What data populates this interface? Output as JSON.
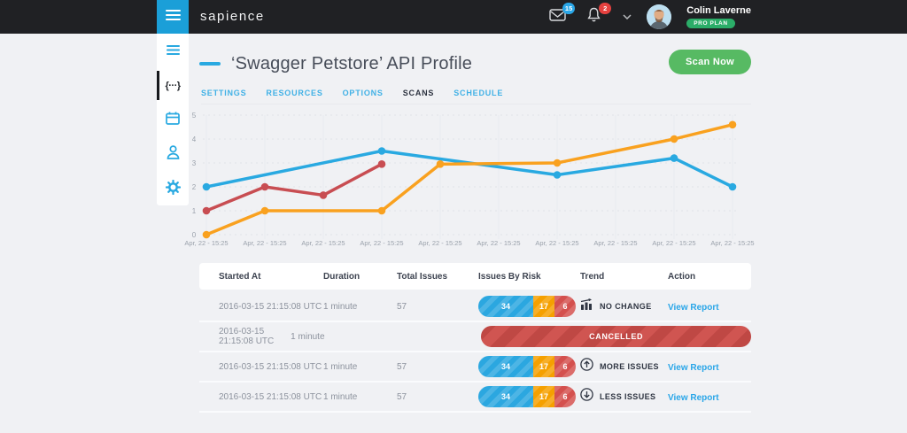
{
  "colors": {
    "accent_blue": "#29a9e1",
    "chart_red": "#c84d52",
    "chart_orange": "#f9a11f",
    "green_button": "#57ba63",
    "link_blue": "#2aa6e8",
    "risk_blue": "#2ba7e0",
    "risk_orange": "#f5a000",
    "risk_red": "#d4504e",
    "cancel_red": "#d05551"
  },
  "topbar": {
    "logo": "sapience",
    "mail_badge": "15",
    "bell_badge": "2",
    "user_name": "Colin Laverne",
    "user_plan": "PRO PLAN"
  },
  "sidebar": {
    "items": [
      {
        "id": "menu",
        "icon": "hamburger-icon",
        "active": false
      },
      {
        "id": "api-profiles",
        "icon": "code-braces-icon",
        "active": true,
        "glyph": "{···}"
      },
      {
        "id": "schedule",
        "icon": "calendar-icon",
        "active": false
      },
      {
        "id": "users",
        "icon": "user-icon",
        "active": false
      },
      {
        "id": "settings",
        "icon": "gear-icon",
        "active": false
      }
    ]
  },
  "page": {
    "title": "‘Swagger Petstore’ API Profile",
    "scan_button": "Scan Now",
    "tabs": [
      {
        "label": "SETTINGS",
        "active": false
      },
      {
        "label": "RESOURCES",
        "active": false
      },
      {
        "label": "OPTIONS",
        "active": false
      },
      {
        "label": "SCANS",
        "active": true
      },
      {
        "label": "SCHEDULE",
        "active": false
      }
    ]
  },
  "chart_data": {
    "type": "line",
    "title": "",
    "xlabel": "",
    "ylabel": "",
    "ylim": [
      0,
      5
    ],
    "yticks": [
      0,
      1,
      2,
      3,
      4,
      5
    ],
    "grid": true,
    "legend": "none",
    "x_labels": [
      "Apr, 22 - 15:25",
      "Apr, 22 - 15:25",
      "Apr, 22 - 15:25",
      "Apr, 22 - 15:25",
      "Apr, 22 - 15:25",
      "Apr, 22 - 15:25",
      "Apr, 22 - 15:25",
      "Apr, 22 - 15:25",
      "Apr, 22 - 15:25",
      "Apr, 22 - 15:25"
    ],
    "series": [
      {
        "name": "blue",
        "color": "#29a9e1",
        "points": [
          {
            "x": 0,
            "y": 2.0
          },
          {
            "x": 3,
            "y": 3.5
          },
          {
            "x": 6,
            "y": 2.5
          },
          {
            "x": 8,
            "y": 3.2
          },
          {
            "x": 9,
            "y": 2.0
          }
        ]
      },
      {
        "name": "red",
        "color": "#c84d52",
        "points": [
          {
            "x": 0,
            "y": 1.0
          },
          {
            "x": 1,
            "y": 2.0
          },
          {
            "x": 2,
            "y": 1.65
          },
          {
            "x": 3,
            "y": 2.95
          }
        ]
      },
      {
        "name": "orange",
        "color": "#f9a11f",
        "points": [
          {
            "x": 0,
            "y": 0.0
          },
          {
            "x": 1,
            "y": 1.0
          },
          {
            "x": 3,
            "y": 1.0
          },
          {
            "x": 4,
            "y": 2.95
          },
          {
            "x": 6,
            "y": 3.0
          },
          {
            "x": 8,
            "y": 4.0
          },
          {
            "x": 9,
            "y": 4.6
          }
        ]
      }
    ]
  },
  "table": {
    "columns": [
      "Started At",
      "Duration",
      "Total Issues",
      "Issues By Risk",
      "Trend",
      "Action"
    ],
    "rows": [
      {
        "started_at": "2016-03-15 21:15:08 UTC",
        "duration": "1 minute",
        "total_issues": "57",
        "risk": [
          "34",
          "17",
          "6"
        ],
        "trend": "NO CHANGE",
        "action": "View Report"
      },
      {
        "started_at": "2016-03-15 21:15:08 UTC",
        "duration": "1 minute",
        "status": "CANCELLED"
      },
      {
        "started_at": "2016-03-15 21:15:08 UTC",
        "duration": "1 minute",
        "total_issues": "57",
        "risk": [
          "34",
          "17",
          "6"
        ],
        "trend": "MORE ISSUES",
        "action": "View Report"
      },
      {
        "started_at": "2016-03-15 21:15:08 UTC",
        "duration": "1 minute",
        "total_issues": "57",
        "risk": [
          "34",
          "17",
          "6"
        ],
        "trend": "LESS ISSUES",
        "action": "View Report"
      }
    ]
  }
}
